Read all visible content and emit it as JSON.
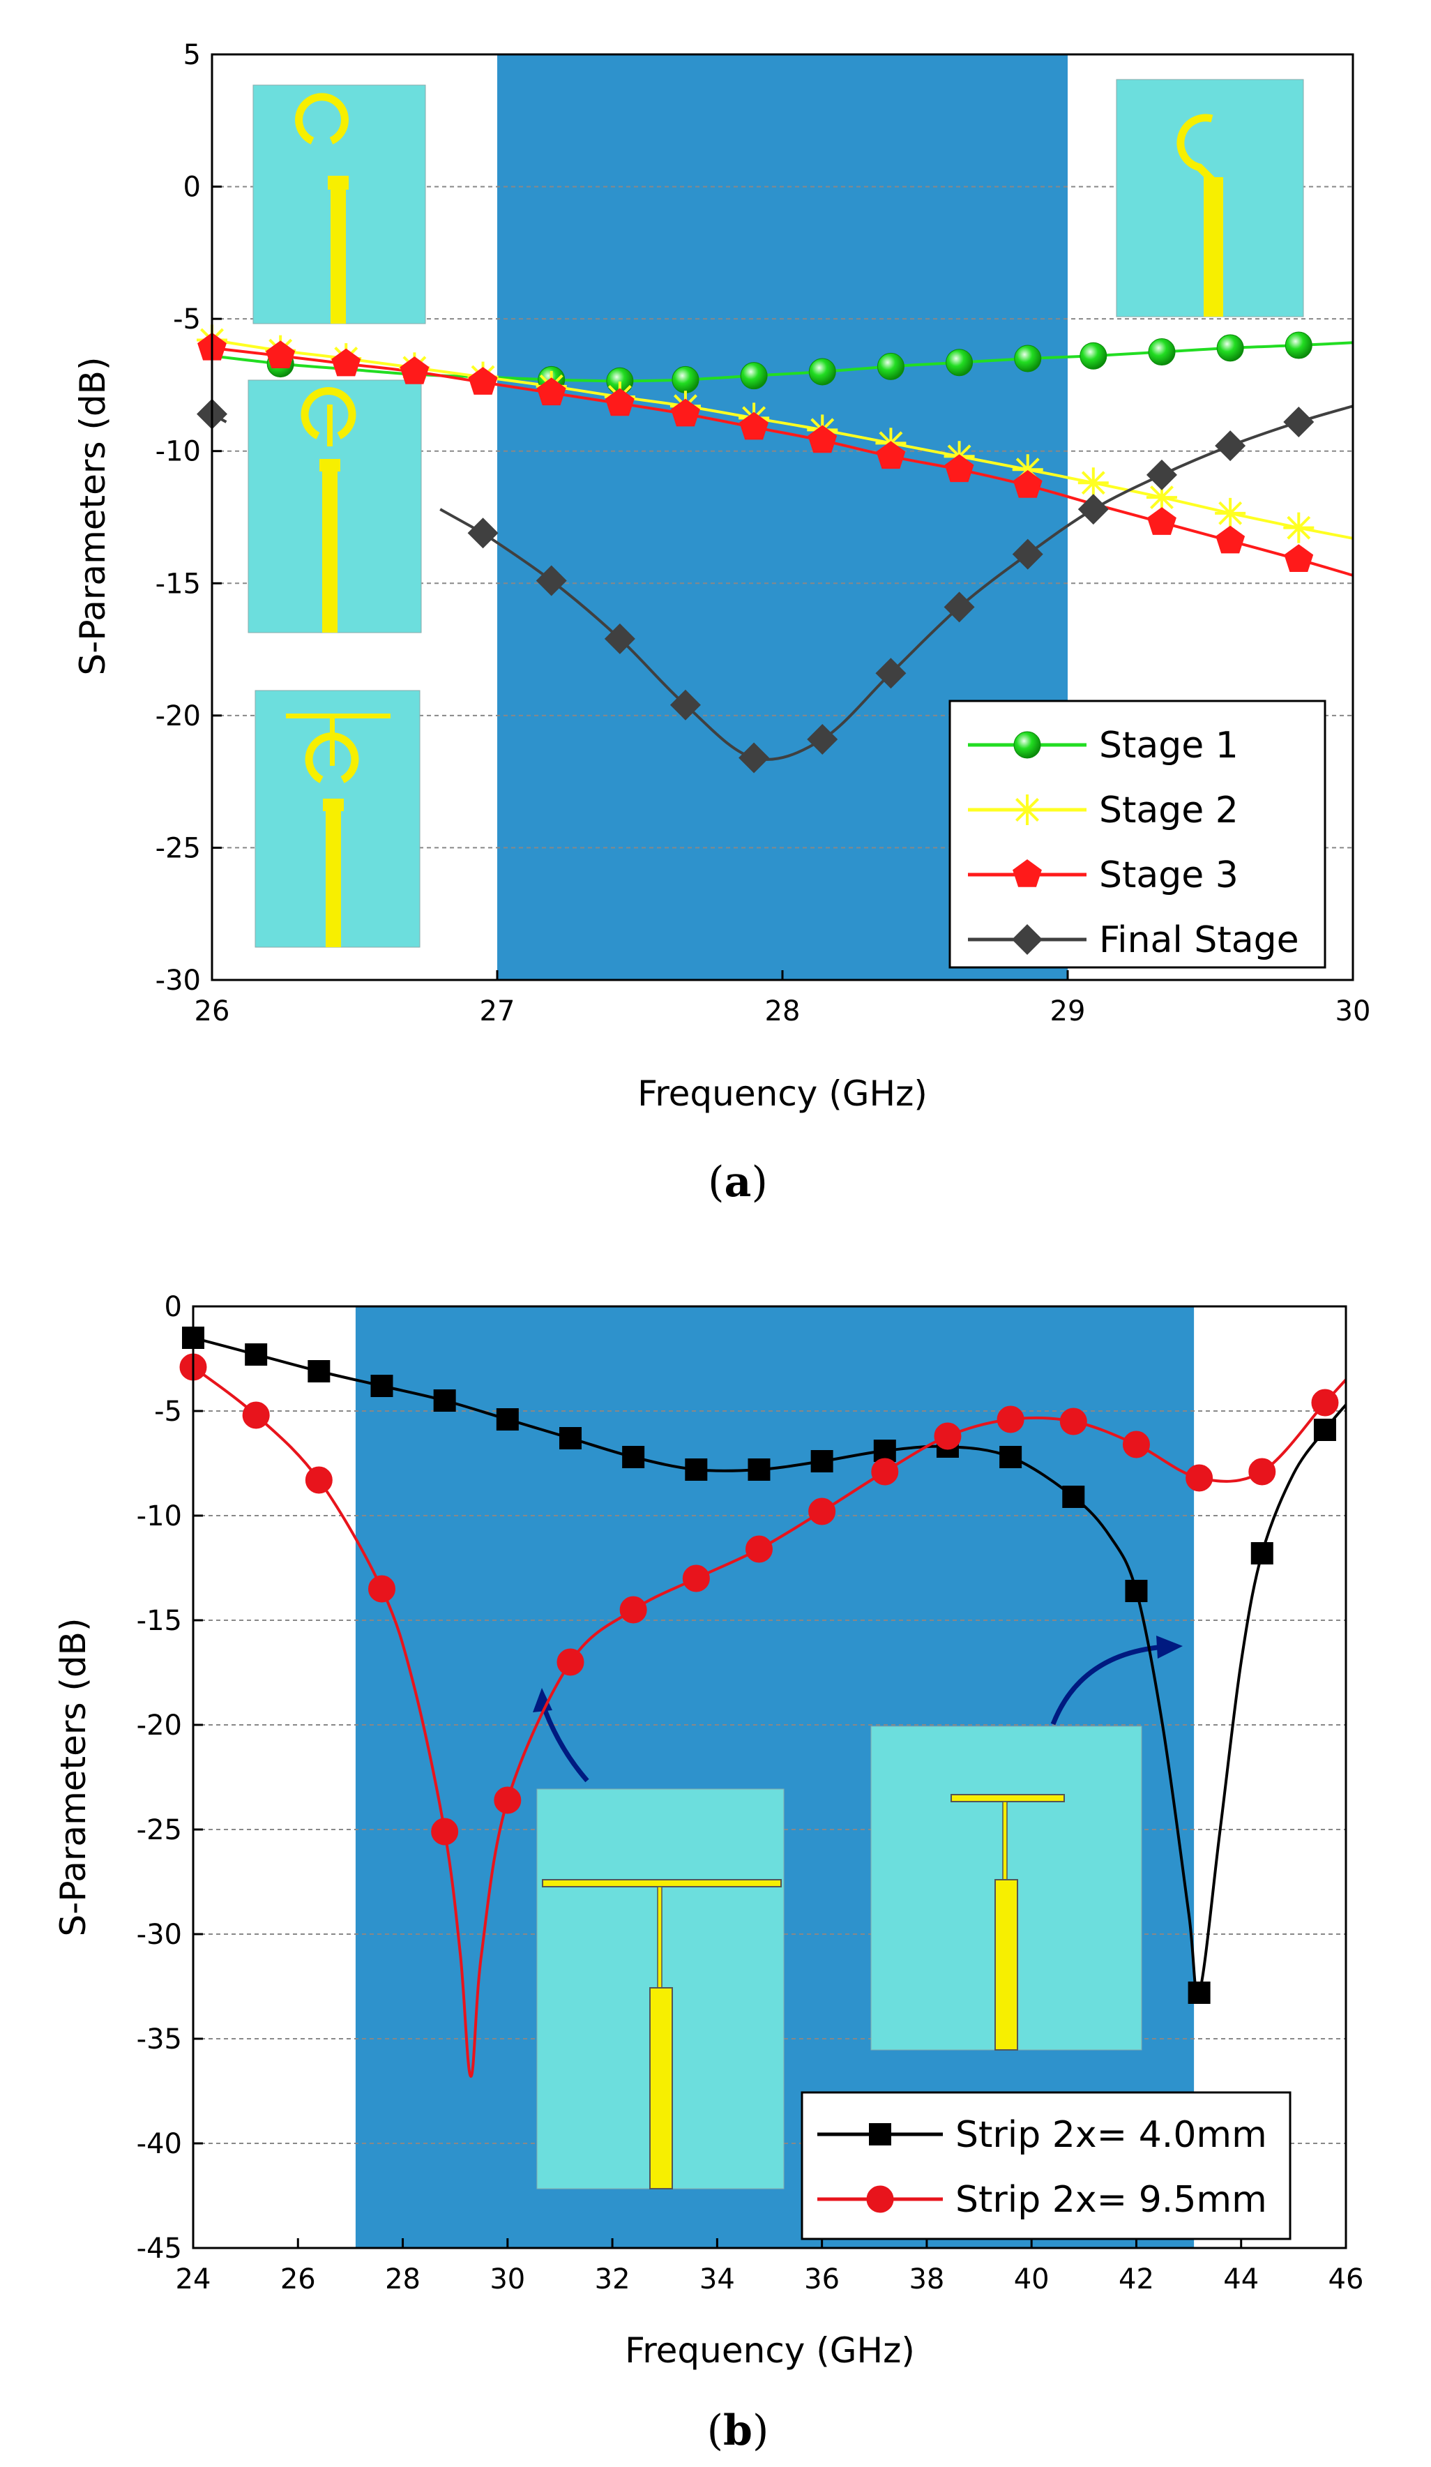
{
  "chart_data": [
    {
      "type": "line",
      "panel": "(a)",
      "xlabel": "Frequency (GHz)",
      "ylabel": "S-Parameters (dB)",
      "xlim": [
        26,
        30
      ],
      "ylim": [
        -30,
        5
      ],
      "xticks": [
        26,
        27,
        28,
        29,
        30
      ],
      "yticks": [
        5,
        0,
        -5,
        -10,
        -15,
        -20,
        -25,
        -30
      ],
      "grid": "horizontal dashed",
      "highlight_band": [
        27,
        29
      ],
      "legend_position": "bottom-right",
      "caption_prefix": "(",
      "caption_letter": "a",
      "caption_suffix": ")",
      "series": [
        {
          "name": "Stage 1",
          "color": "#22dd22",
          "marker": "circle",
          "x": [
            26.0,
            26.24,
            26.47,
            26.71,
            26.95,
            27.19,
            27.43,
            27.66,
            27.9,
            28.14,
            28.38,
            28.62,
            28.86,
            29.09,
            29.33,
            29.57,
            29.81,
            30.0
          ],
          "y": [
            -6.4,
            -6.7,
            -6.9,
            -7.1,
            -7.2,
            -7.3,
            -7.35,
            -7.3,
            -7.15,
            -7.0,
            -6.8,
            -6.65,
            -6.5,
            -6.4,
            -6.25,
            -6.1,
            -6.0,
            -5.9
          ],
          "marker_x": [
            26.24,
            27.19,
            27.43,
            27.66,
            27.9,
            28.14,
            28.38,
            28.62,
            28.86,
            29.09,
            29.33,
            29.57,
            29.81
          ]
        },
        {
          "name": "Stage 2",
          "color": "#ffff22",
          "marker": "star",
          "x": [
            26.0,
            26.24,
            26.47,
            26.71,
            26.95,
            27.19,
            27.43,
            27.66,
            27.9,
            28.14,
            28.38,
            28.62,
            28.86,
            29.09,
            29.33,
            29.57,
            29.81,
            30.0
          ],
          "y": [
            -5.8,
            -6.2,
            -6.5,
            -6.85,
            -7.2,
            -7.55,
            -7.95,
            -8.3,
            -8.75,
            -9.2,
            -9.7,
            -10.2,
            -10.7,
            -11.2,
            -11.75,
            -12.35,
            -12.9,
            -13.3
          ],
          "marker_x": [
            26.0,
            26.24,
            26.47,
            26.71,
            26.95,
            27.19,
            27.43,
            27.66,
            27.9,
            28.14,
            28.38,
            28.62,
            28.86,
            29.09,
            29.33,
            29.57,
            29.81
          ]
        },
        {
          "name": "Stage 3",
          "color": "#ff1a1a",
          "marker": "pentagon",
          "x": [
            26.0,
            26.24,
            26.47,
            26.71,
            26.95,
            27.19,
            27.43,
            27.66,
            27.9,
            28.14,
            28.38,
            28.62,
            28.86,
            29.09,
            29.33,
            29.57,
            29.81,
            30.0
          ],
          "y": [
            -6.1,
            -6.4,
            -6.7,
            -7.0,
            -7.4,
            -7.8,
            -8.2,
            -8.6,
            -9.1,
            -9.6,
            -10.2,
            -10.7,
            -11.3,
            -12.0,
            -12.7,
            -13.4,
            -14.1,
            -14.7
          ],
          "marker_x": [
            26.0,
            26.24,
            26.47,
            26.71,
            26.95,
            27.19,
            27.43,
            27.66,
            27.9,
            28.14,
            28.38,
            28.62,
            28.86,
            29.33,
            29.57,
            29.81
          ]
        },
        {
          "name": "Final Stage",
          "color": "#404040",
          "marker": "diamond",
          "x": [
            26.95,
            27.19,
            27.43,
            27.66,
            27.9,
            28.14,
            28.38,
            28.62,
            28.86,
            29.09,
            29.33,
            29.57,
            29.81,
            30.0
          ],
          "y": [
            -13.1,
            -14.9,
            -17.1,
            -19.6,
            -21.6,
            -20.9,
            -18.4,
            -15.9,
            -13.9,
            -12.2,
            -10.9,
            -9.8,
            -8.9,
            -8.3
          ],
          "marker_x": [
            26.0,
            26.95,
            27.19,
            27.43,
            27.66,
            27.9,
            28.14,
            28.38,
            28.62,
            28.86,
            29.09,
            29.33,
            29.57,
            29.81
          ],
          "start_segment": {
            "x": [
              26.0,
              26.05
            ],
            "y": [
              -8.6,
              -8.9
            ]
          },
          "resume_segment": {
            "x": [
              26.8,
              26.95
            ],
            "y": [
              -12.2,
              -13.1
            ]
          }
        }
      ]
    },
    {
      "type": "line",
      "panel": "(b)",
      "xlabel": "Frequency (GHz)",
      "ylabel": "S-Parameters (dB)",
      "xlim": [
        24,
        46
      ],
      "ylim": [
        -45,
        0
      ],
      "xticks": [
        24,
        26,
        28,
        30,
        32,
        34,
        36,
        38,
        40,
        42,
        44,
        46
      ],
      "yticks": [
        0,
        -5,
        -10,
        -15,
        -20,
        -25,
        -30,
        -35,
        -40,
        -45
      ],
      "grid": "horizontal dashed",
      "highlight_band": [
        27.1,
        43.1
      ],
      "legend_position": "bottom-right",
      "caption_prefix": "(",
      "caption_letter": "b",
      "caption_suffix": ")",
      "series": [
        {
          "name": "Strip 2x= 4.0mm",
          "color": "#000000",
          "marker": "square",
          "x": [
            24.0,
            25.2,
            26.4,
            27.6,
            28.8,
            30.0,
            31.2,
            32.4,
            33.6,
            34.8,
            36.0,
            37.2,
            38.4,
            39.6,
            40.8,
            41.5,
            42.0,
            42.5,
            43.0,
            43.2,
            43.6,
            44.0,
            44.4,
            45.0,
            45.6,
            46.0
          ],
          "y": [
            -1.5,
            -2.3,
            -3.1,
            -3.8,
            -4.5,
            -5.4,
            -6.3,
            -7.2,
            -7.8,
            -7.8,
            -7.4,
            -6.9,
            -6.7,
            -7.2,
            -9.1,
            -11.0,
            -13.6,
            -20.0,
            -29.0,
            -32.8,
            -25.0,
            -17.0,
            -11.8,
            -8.0,
            -5.9,
            -4.7
          ],
          "marker_x": [
            24.0,
            25.2,
            26.4,
            27.6,
            28.8,
            30.0,
            31.2,
            32.4,
            33.6,
            34.8,
            36.0,
            37.2,
            38.4,
            39.6,
            40.8,
            42.0,
            43.2,
            44.4,
            45.6
          ]
        },
        {
          "name": "Strip 2x= 9.5mm",
          "color": "#e8141c",
          "marker": "circle",
          "x": [
            24.0,
            25.2,
            26.4,
            27.6,
            28.2,
            28.8,
            29.1,
            29.3,
            29.5,
            30.0,
            31.2,
            32.4,
            33.6,
            34.8,
            36.0,
            37.2,
            38.4,
            39.6,
            40.8,
            42.0,
            43.2,
            44.4,
            45.6,
            46.0
          ],
          "y": [
            -2.9,
            -5.2,
            -8.3,
            -13.5,
            -18.0,
            -25.1,
            -31.0,
            -36.8,
            -31.0,
            -23.6,
            -17.0,
            -14.5,
            -13.0,
            -11.6,
            -9.8,
            -7.9,
            -6.2,
            -5.4,
            -5.5,
            -6.6,
            -8.2,
            -7.9,
            -4.6,
            -3.5
          ],
          "marker_x": [
            24.0,
            25.2,
            26.4,
            27.6,
            28.8,
            30.0,
            31.2,
            32.4,
            33.6,
            34.8,
            36.0,
            37.2,
            38.4,
            39.6,
            40.8,
            42.0,
            43.2,
            44.4,
            45.6
          ]
        }
      ]
    }
  ]
}
